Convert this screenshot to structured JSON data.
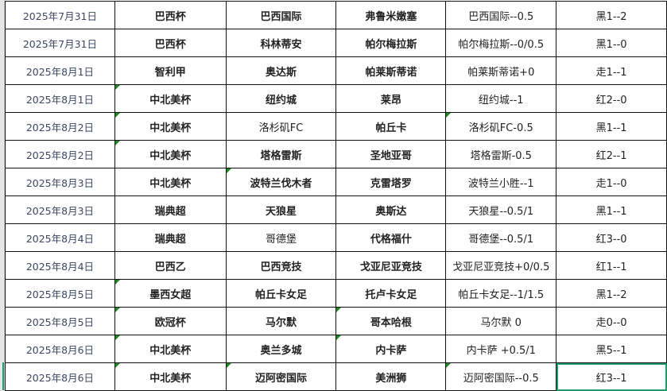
{
  "rows": [
    {
      "date": "2025年7月31日",
      "league": "巴西杯",
      "home": "巴西国际",
      "away": "弗鲁米嫩塞",
      "handicap": "巴西国际--0.5",
      "result": "黑1--2"
    },
    {
      "date": "2025年7月31日",
      "league": "巴西杯",
      "home": "科林蒂安",
      "away": "帕尔梅拉斯",
      "handicap": "帕尔梅拉斯--0/0.5",
      "result": "黑1--0"
    },
    {
      "date": "2025年8月1日",
      "league": "智利甲",
      "home": "奥达斯",
      "away": "帕莱斯蒂诺",
      "handicap": "帕莱斯蒂诺+0",
      "result": "走1--1"
    },
    {
      "date": "2025年8月1日",
      "league": "中北美杯",
      "home": "纽约城",
      "away": "莱昂",
      "handicap": "纽约城--1",
      "result": "红2--0"
    },
    {
      "date": "2025年8月2日",
      "league": "中北美杯",
      "home": "洛杉矶FC",
      "away": "帕丘卡",
      "handicap": "洛杉矶FC-0.5",
      "result": "黑1--1"
    },
    {
      "date": "2025年8月2日",
      "league": "中北美杯",
      "home": "塔格雷斯",
      "away": "圣地亚哥",
      "handicap": "塔格雷斯-0.5",
      "result": "红2--1"
    },
    {
      "date": "2025年8月3日",
      "league": "中北美杯",
      "home": "波特兰伐木者",
      "away": "克雷塔罗",
      "handicap": "波特兰小胜--1",
      "result": "走1--0"
    },
    {
      "date": "2025年8月3日",
      "league": "瑞典超",
      "home": "天狼星",
      "away": "奥斯达",
      "handicap": "天狼星--0.5/1",
      "result": "黑1--1"
    },
    {
      "date": "2025年8月4日",
      "league": "瑞典超",
      "home": "哥德堡",
      "away": "代格福什",
      "handicap": "哥德堡--0.5/1",
      "result": "红3--0"
    },
    {
      "date": "2025年8月4日",
      "league": "巴西乙",
      "home": "巴西竞技",
      "away": "戈亚尼亚竞技",
      "handicap": "戈亚尼亚竞技+0/0.5",
      "result": "红1--1"
    },
    {
      "date": "2025年8月5日",
      "league": "墨西女超",
      "home": "帕丘卡女足",
      "away": "托卢卡女足",
      "handicap": "帕丘卡女足--1/1.5",
      "result": "黑1--2"
    },
    {
      "date": "2025年8月5日",
      "league": "欧冠杯",
      "home": "马尔默",
      "away": "哥本哈根",
      "handicap": "马尔默 0",
      "result": "走0--0"
    },
    {
      "date": "2025年8月6日",
      "league": "中北美杯",
      "home": "奥兰多城",
      "away": "内卡萨",
      "handicap": "内卡萨 +0.5/1",
      "result": "黑5--1"
    },
    {
      "date": "2025年8月6日",
      "league": "中北美杯",
      "home": "迈阿密国际",
      "away": "美洲狮",
      "handicap": "迈阿密国际--0.5",
      "result": "红3--1"
    }
  ],
  "colors": {
    "selection": "#1e9c6c",
    "comment_marker": "#1a8a1a",
    "grid": "#111111"
  }
}
